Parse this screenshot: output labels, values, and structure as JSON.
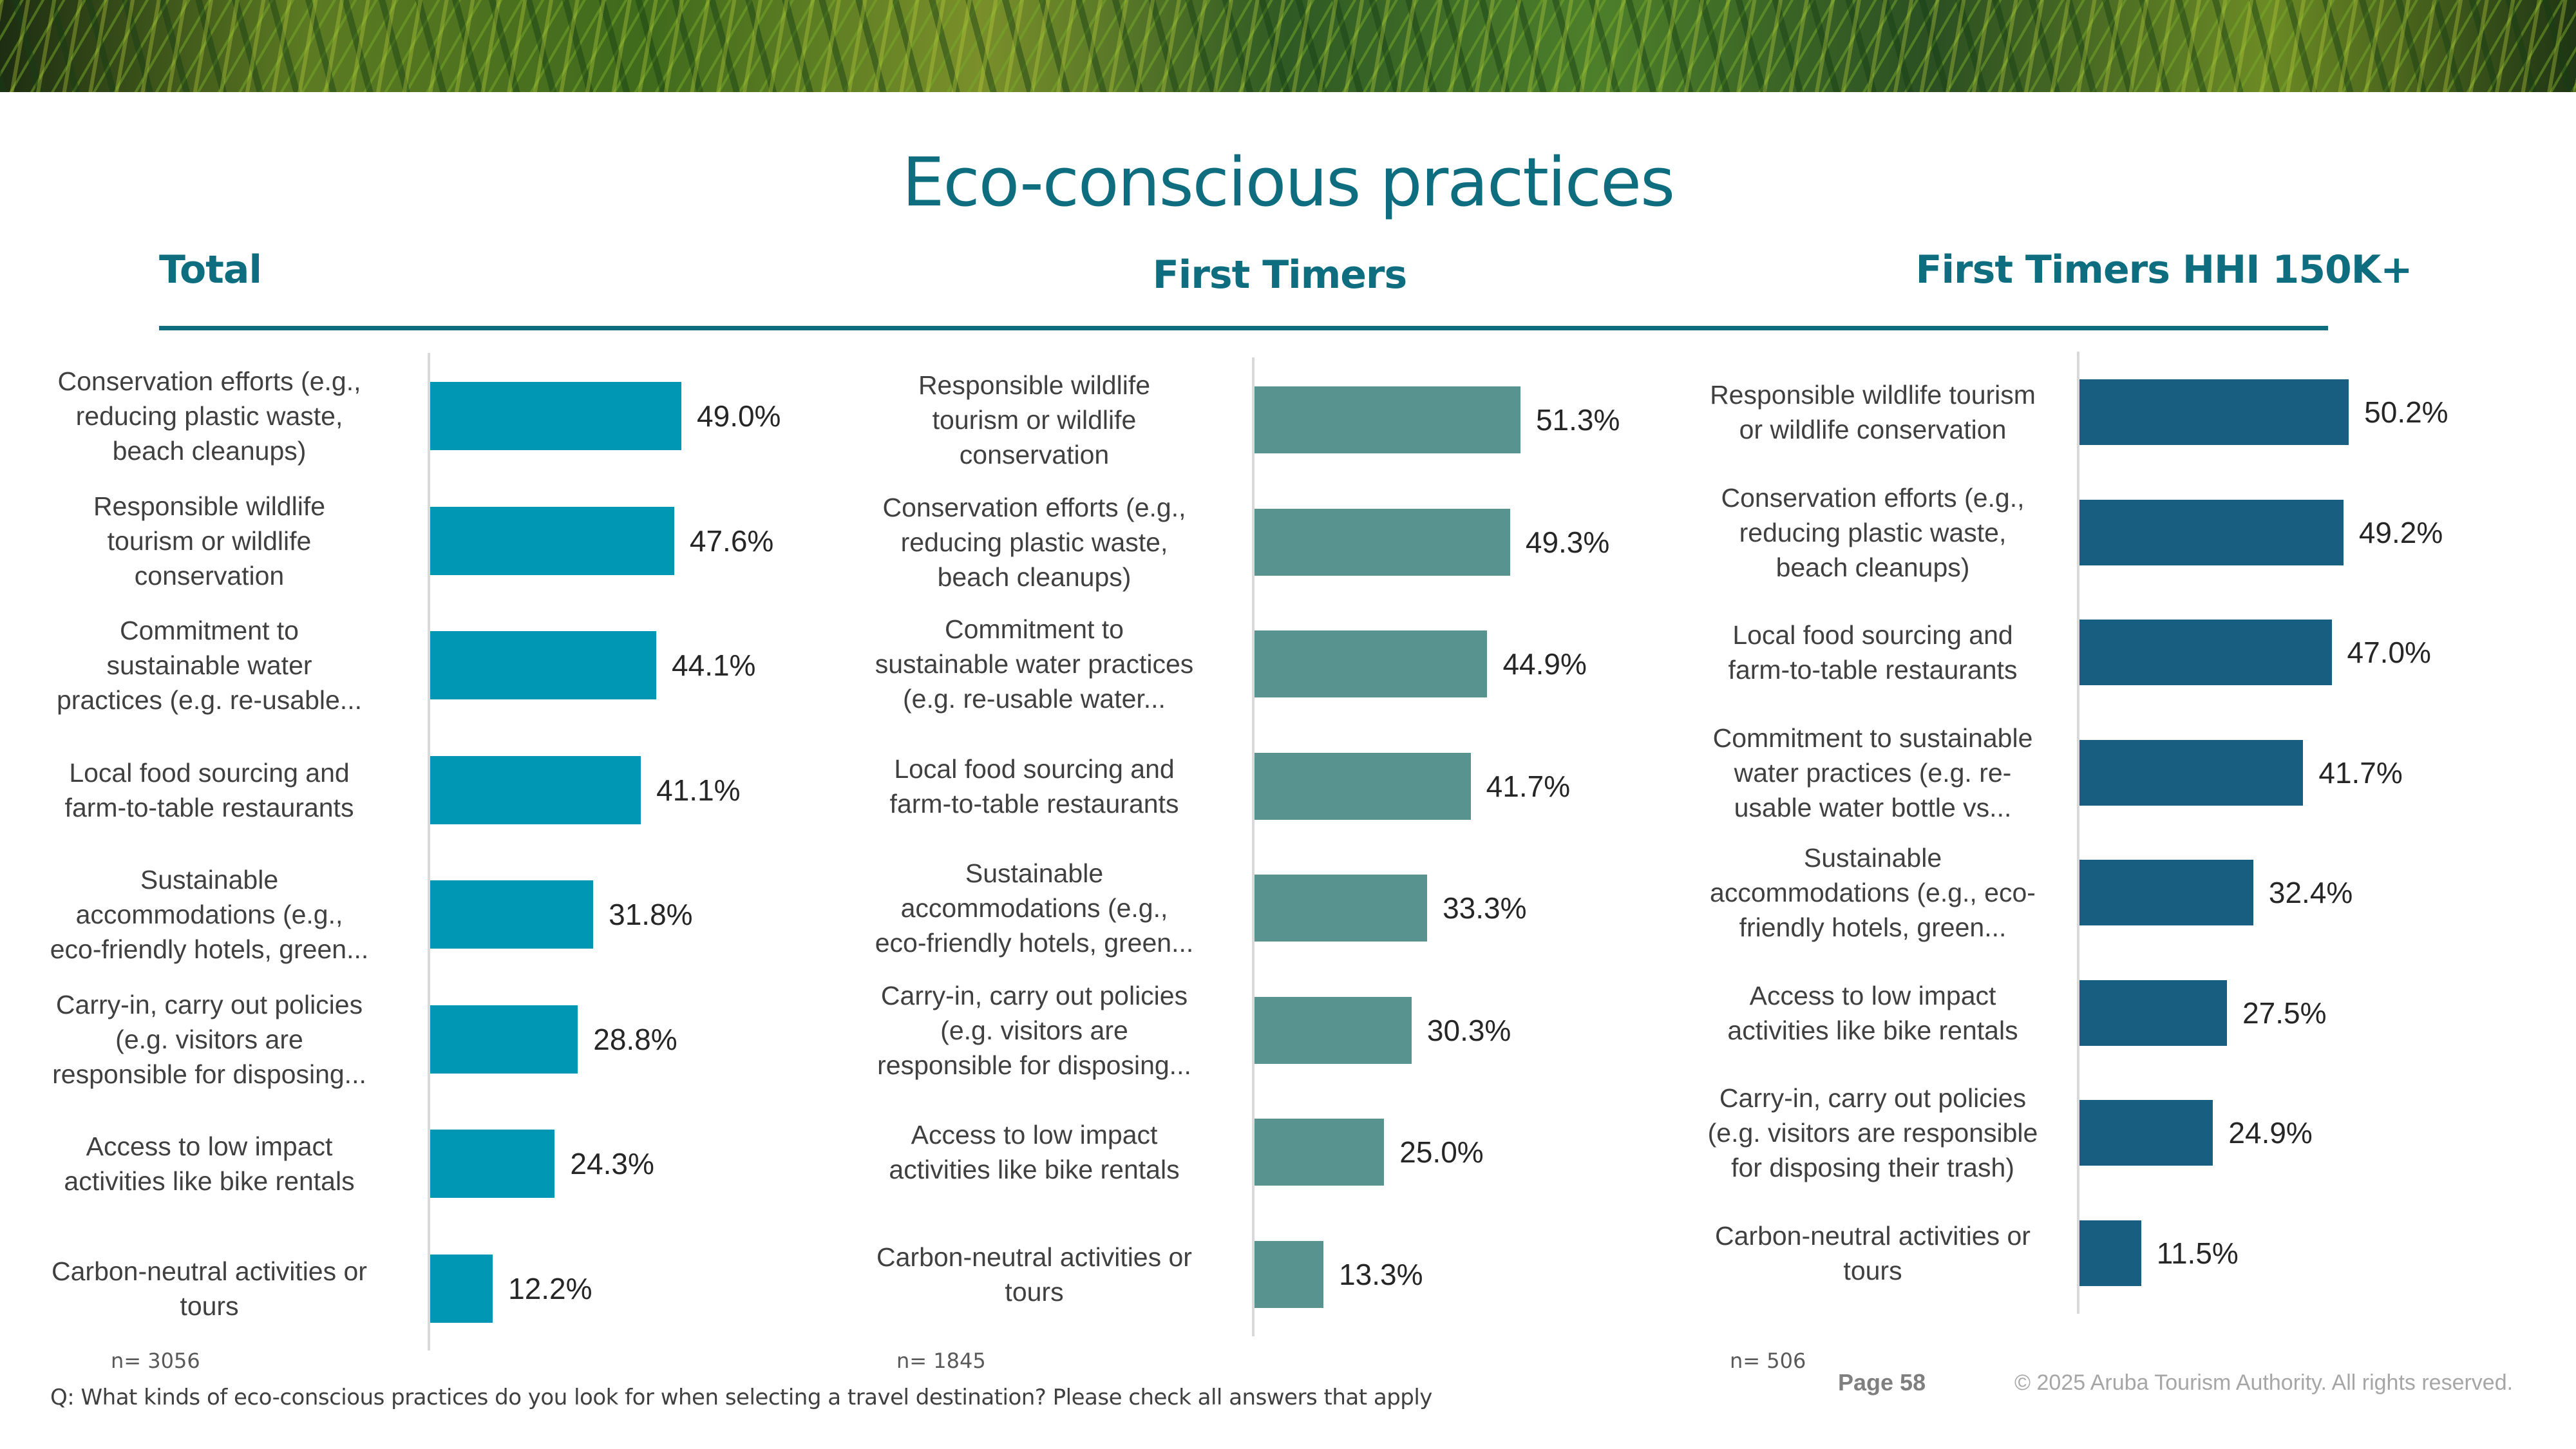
{
  "title": "Eco-conscious practices",
  "panel_headers": [
    "Total",
    "First Timers",
    "First Timers HHI 150K+"
  ],
  "footer": {
    "question": "Q: What kinds of eco-conscious practices do you look for when selecting a travel destination? Please check all answers that apply",
    "page": "Page 58",
    "copyright": "© 2025 Aruba Tourism Authority. All rights reserved."
  },
  "colors": {
    "title": "#0e6e80",
    "total_bars": "#0097b5",
    "first_timers_bars": "#58938f",
    "hhi_bars": "#175e80",
    "axis": "#d9d9d9"
  },
  "chart_data": [
    {
      "type": "bar",
      "orientation": "horizontal",
      "title": "Total",
      "sample": "n= 3056",
      "categories": [
        "Conservation efforts (e.g., reducing plastic waste, beach cleanups)",
        "Responsible wildlife tourism or wildlife conservation",
        "Commitment to sustainable water practices (e.g. re-usable...",
        "Local food sourcing and farm-to-table restaurants",
        "Sustainable accommodations (e.g., eco-friendly hotels, green...",
        "Carry-in, carry out policies (e.g. visitors are responsible for disposing...",
        "Access to low impact activities like bike rentals",
        "Carbon-neutral activities or tours"
      ],
      "label_lines": [
        [
          "Conservation efforts (e.g.,",
          "reducing plastic waste,",
          "beach cleanups)"
        ],
        [
          "Responsible wildlife",
          "tourism or wildlife",
          "conservation"
        ],
        [
          "Commitment to",
          "sustainable water",
          "practices (e.g. re-usable..."
        ],
        [
          "Local food sourcing and",
          "farm-to-table restaurants"
        ],
        [
          "Sustainable",
          "accommodations (e.g.,",
          "eco-friendly hotels, green..."
        ],
        [
          "Carry-in, carry out policies",
          "(e.g. visitors are",
          "responsible for disposing..."
        ],
        [
          "Access to low impact",
          "activities like bike rentals"
        ],
        [
          "Carbon-neutral activities or",
          "tours"
        ]
      ],
      "values": [
        49.0,
        47.6,
        44.1,
        41.1,
        31.8,
        28.8,
        24.3,
        12.2
      ],
      "value_labels": [
        "49.0%",
        "47.6%",
        "44.1%",
        "41.1%",
        "31.8%",
        "28.8%",
        "24.3%",
        "12.2%"
      ],
      "unit": "%",
      "grid": false
    },
    {
      "type": "bar",
      "orientation": "horizontal",
      "title": "First Timers",
      "sample": "n= 1845",
      "categories": [
        "Responsible wildlife tourism or wildlife conservation",
        "Conservation efforts (e.g., reducing plastic waste, beach cleanups)",
        "Commitment to sustainable water practices (e.g. re-usable water...",
        "Local food sourcing and farm-to-table restaurants",
        "Sustainable accommodations (e.g., eco-friendly hotels, green...",
        "Carry-in, carry out policies (e.g. visitors are responsible for disposing...",
        "Access to low impact activities like bike rentals",
        "Carbon-neutral activities or tours"
      ],
      "label_lines": [
        [
          "Responsible wildlife",
          "tourism or wildlife",
          "conservation"
        ],
        [
          "Conservation efforts (e.g.,",
          "reducing plastic waste,",
          "beach cleanups)"
        ],
        [
          "Commitment to",
          "sustainable water practices",
          "(e.g. re-usable water..."
        ],
        [
          "Local food sourcing and",
          "farm-to-table restaurants"
        ],
        [
          "Sustainable",
          "accommodations (e.g.,",
          "eco-friendly hotels, green..."
        ],
        [
          "Carry-in, carry out policies",
          "(e.g. visitors are",
          "responsible for disposing..."
        ],
        [
          "Access to low impact",
          "activities like bike rentals"
        ],
        [
          "Carbon-neutral activities or",
          "tours"
        ]
      ],
      "values": [
        51.3,
        49.3,
        44.9,
        41.7,
        33.3,
        30.3,
        25.0,
        13.3
      ],
      "value_labels": [
        "51.3%",
        "49.3%",
        "44.9%",
        "41.7%",
        "33.3%",
        "30.3%",
        "25.0%",
        "13.3%"
      ],
      "unit": "%",
      "grid": false
    },
    {
      "type": "bar",
      "orientation": "horizontal",
      "title": "First Timers HHI 150K+",
      "sample": "n= 506",
      "categories": [
        "Responsible wildlife tourism or wildlife conservation",
        "Conservation efforts (e.g., reducing plastic waste, beach cleanups)",
        "Local food sourcing and farm-to-table restaurants",
        "Commitment to sustainable water practices (e.g. re-usable water bottle vs...",
        "Sustainable accommodations (e.g., eco-friendly hotels, green...",
        "Access to low impact activities like bike rentals",
        "Carry-in, carry out policies (e.g. visitors are responsible for disposing their trash)",
        "Carbon-neutral activities or tours"
      ],
      "label_lines": [
        [
          "Responsible wildlife tourism",
          "or wildlife conservation"
        ],
        [
          "Conservation efforts (e.g.,",
          "reducing plastic waste,",
          "beach cleanups)"
        ],
        [
          "Local food sourcing and",
          "farm-to-table restaurants"
        ],
        [
          "Commitment to sustainable",
          "water practices (e.g. re-",
          "usable water bottle vs..."
        ],
        [
          "Sustainable",
          "accommodations (e.g., eco-",
          "friendly hotels, green..."
        ],
        [
          "Access to low impact",
          "activities like bike rentals"
        ],
        [
          "Carry-in, carry out policies",
          "(e.g. visitors are responsible",
          "for disposing their trash)"
        ],
        [
          "Carbon-neutral activities or",
          "tours"
        ]
      ],
      "values": [
        50.2,
        49.2,
        47.0,
        41.7,
        32.4,
        27.5,
        24.9,
        11.5
      ],
      "value_labels": [
        "50.2%",
        "49.2%",
        "47.0%",
        "41.7%",
        "32.4%",
        "27.5%",
        "24.9%",
        "11.5%"
      ],
      "unit": "%",
      "grid": false
    }
  ]
}
